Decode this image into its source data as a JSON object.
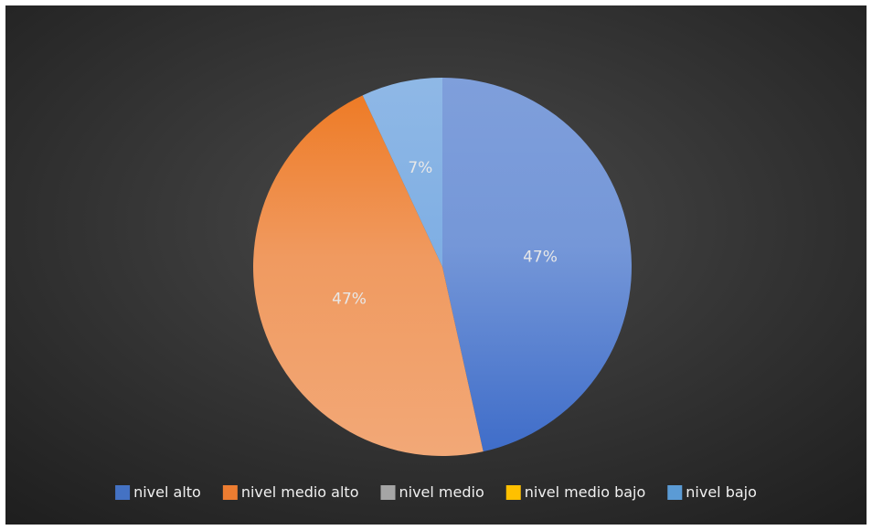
{
  "chart_data": {
    "type": "pie",
    "title": "",
    "slices": [
      {
        "name": "nivel alto",
        "value": 47,
        "label": "47%",
        "color": "#4472c4"
      },
      {
        "name": "nivel medio alto",
        "value": 47,
        "label": "47%",
        "color": "#ed7d31"
      },
      {
        "name": "nivel medio",
        "value": 0,
        "label": "",
        "color": "#a5a5a5"
      },
      {
        "name": "nivel medio bajo",
        "value": 0,
        "label": "",
        "color": "#ffc000"
      },
      {
        "name": "nivel bajo",
        "value": 7,
        "label": "7%",
        "color": "#5b9bd5"
      }
    ],
    "legend": {
      "position": "bottom",
      "entries": [
        "nivel alto",
        "nivel medio alto",
        "nivel medio",
        "nivel medio bajo",
        "nivel bajo"
      ]
    },
    "background": "#3a3a3a"
  }
}
